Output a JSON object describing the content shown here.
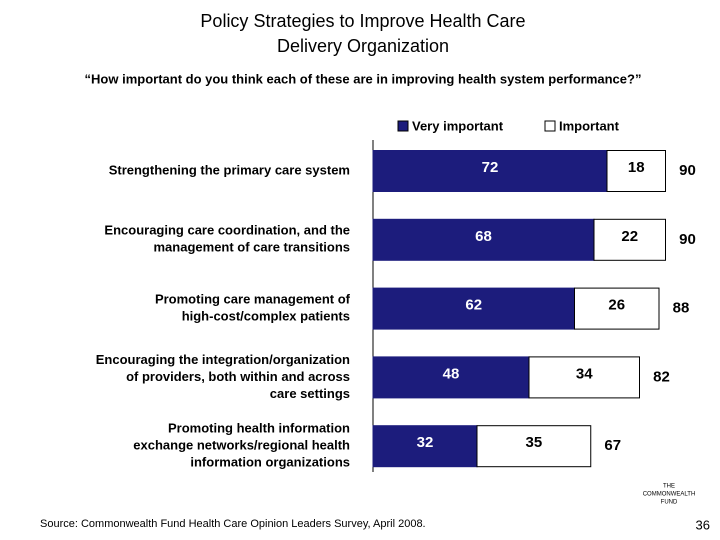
{
  "chart_data": {
    "type": "stacked-bar",
    "title": [
      "Policy Strategies to Improve Health Care",
      "Delivery Organization"
    ],
    "subtitle": "“How important do you think each of these are in improving health system performance?”",
    "categories": [
      [
        "Strengthening the primary care system"
      ],
      [
        "Encouraging care coordination, and the",
        "management of care transitions"
      ],
      [
        "Promoting care management of",
        "high-cost/complex patients"
      ],
      [
        "Encouraging the integration/organization",
        "of providers, both within and across",
        "care settings"
      ],
      [
        "Promoting health information",
        "exchange networks/regional health",
        "information organizations"
      ]
    ],
    "series": [
      {
        "name": "Very important",
        "color": "#1c1c7c",
        "values": [
          72,
          68,
          62,
          48,
          32
        ]
      },
      {
        "name": "Important",
        "color": "#ffffff",
        "values": [
          18,
          22,
          26,
          34,
          35
        ]
      }
    ],
    "totals": [
      90,
      90,
      88,
      82,
      67
    ],
    "source": "Source: Commonwealth Fund Health Care Opinion Leaders Survey, April 2008.",
    "logo": [
      "THE",
      "COMMONWEALTH",
      "FUND"
    ],
    "page_number": "36"
  }
}
